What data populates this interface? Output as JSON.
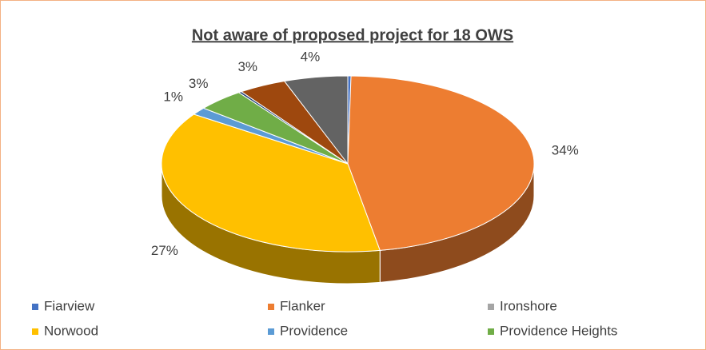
{
  "chart_data": {
    "type": "pie3d",
    "title": "Not aware of proposed project for 18 OWS",
    "categories": [
      "Fiarview",
      "Flanker",
      "Ironshore",
      "Norwood",
      "Providence",
      "Providence Heights",
      null,
      null,
      null
    ],
    "values": [
      0.2,
      34,
      0,
      27,
      1,
      3,
      0.2,
      3,
      4
    ],
    "value_labels": [
      null,
      "34%",
      null,
      "27%",
      "1%",
      "3%",
      null,
      "3%",
      "4%"
    ],
    "colors": [
      "#4472c4",
      "#ed7d31",
      "#a5a5a5",
      "#ffc000",
      "#5b9bd5",
      "#70ad47",
      "#264478",
      "#9e480e",
      "#636363"
    ],
    "legend": "bottom"
  }
}
